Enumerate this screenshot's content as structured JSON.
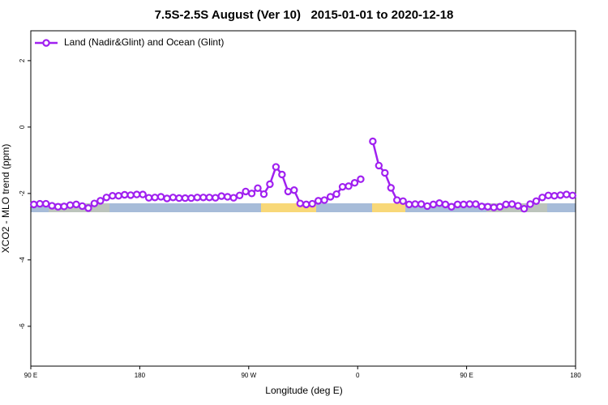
{
  "chart_data": {
    "type": "line",
    "title": "7.5S-2.5S August (Ver 10)   2015-01-01 to 2020-12-18",
    "x_label": "Longitude (deg E)",
    "y_label": "XCO2 - MLO trend (ppm)",
    "xlim": [
      90,
      540
    ],
    "ylim": [
      -7.2,
      2.9
    ],
    "xticks": [
      {
        "value": 90,
        "label": "90 E"
      },
      180,
      {
        "value": 270,
        "label": "90 W"
      },
      {
        "value": 360,
        "label": "0"
      },
      {
        "value": 450,
        "label": "90 E"
      },
      {
        "value": 540,
        "label": "180"
      }
    ],
    "yticks": [
      2,
      0,
      -2,
      -4,
      -6
    ],
    "grid": false,
    "legend": "top-left",
    "x": [
      92.5,
      97.5,
      102.5,
      107.5,
      112.5,
      117.5,
      122.5,
      127.5,
      132.5,
      137.5,
      142.5,
      147.5,
      152.5,
      157.5,
      162.5,
      167.5,
      172.5,
      177.5,
      182.5,
      187.5,
      192.5,
      197.5,
      202.5,
      207.5,
      212.5,
      217.5,
      222.5,
      227.5,
      232.5,
      237.5,
      242.5,
      247.5,
      252.5,
      257.5,
      262.5,
      267.5,
      272.5,
      277.5,
      282.5,
      287.5,
      292.5,
      297.5,
      302.5,
      307.5,
      312.5,
      317.5,
      322.5,
      327.5,
      332.5,
      337.5,
      342.5,
      347.5,
      352.5,
      357.5,
      362.5,
      367.5,
      372.5,
      377.5,
      382.5,
      387.5,
      392.5,
      397.5,
      402.5,
      407.5,
      412.5,
      417.5,
      422.5,
      427.5,
      432.5,
      437.5,
      442.5,
      447.5,
      452.5,
      457.5,
      462.5,
      467.5,
      472.5,
      477.5,
      482.5,
      487.5,
      492.5,
      497.5,
      502.5,
      507.5,
      512.5,
      517.5,
      522.5,
      527.5,
      532.5,
      537.5
    ],
    "series": [
      {
        "name": "Land (Nadir&Glint) and Ocean (Glint)",
        "color": "#a020f0",
        "values": [
          -2.33,
          -2.31,
          -2.31,
          -2.37,
          -2.4,
          -2.39,
          -2.35,
          -2.33,
          -2.38,
          -2.44,
          -2.3,
          -2.22,
          -2.12,
          -2.07,
          -2.07,
          -2.04,
          -2.05,
          -2.03,
          -2.03,
          -2.13,
          -2.12,
          -2.1,
          -2.15,
          -2.12,
          -2.14,
          -2.14,
          -2.14,
          -2.12,
          -2.12,
          -2.12,
          -2.13,
          -2.08,
          -2.1,
          -2.13,
          -2.06,
          -1.94,
          -2.0,
          -1.84,
          -2.02,
          -1.72,
          -1.2,
          -1.43,
          -1.94,
          -1.9,
          -2.3,
          -2.33,
          -2.31,
          -2.22,
          -2.2,
          -2.1,
          -2.02,
          -1.8,
          -1.78,
          -1.68,
          -1.57,
          null,
          -0.43,
          -1.16,
          -1.38,
          -1.83,
          -2.2,
          -2.23,
          -2.33,
          -2.32,
          -2.32,
          -2.38,
          -2.33,
          -2.29,
          -2.33,
          -2.4,
          -2.33,
          -2.33,
          -2.32,
          -2.32,
          -2.39,
          -2.4,
          -2.42,
          -2.4,
          -2.33,
          -2.32,
          -2.37,
          -2.46,
          -2.32,
          -2.23,
          -2.12,
          -2.06,
          -2.07,
          -2.05,
          -2.03,
          -2.06
        ]
      }
    ]
  }
}
